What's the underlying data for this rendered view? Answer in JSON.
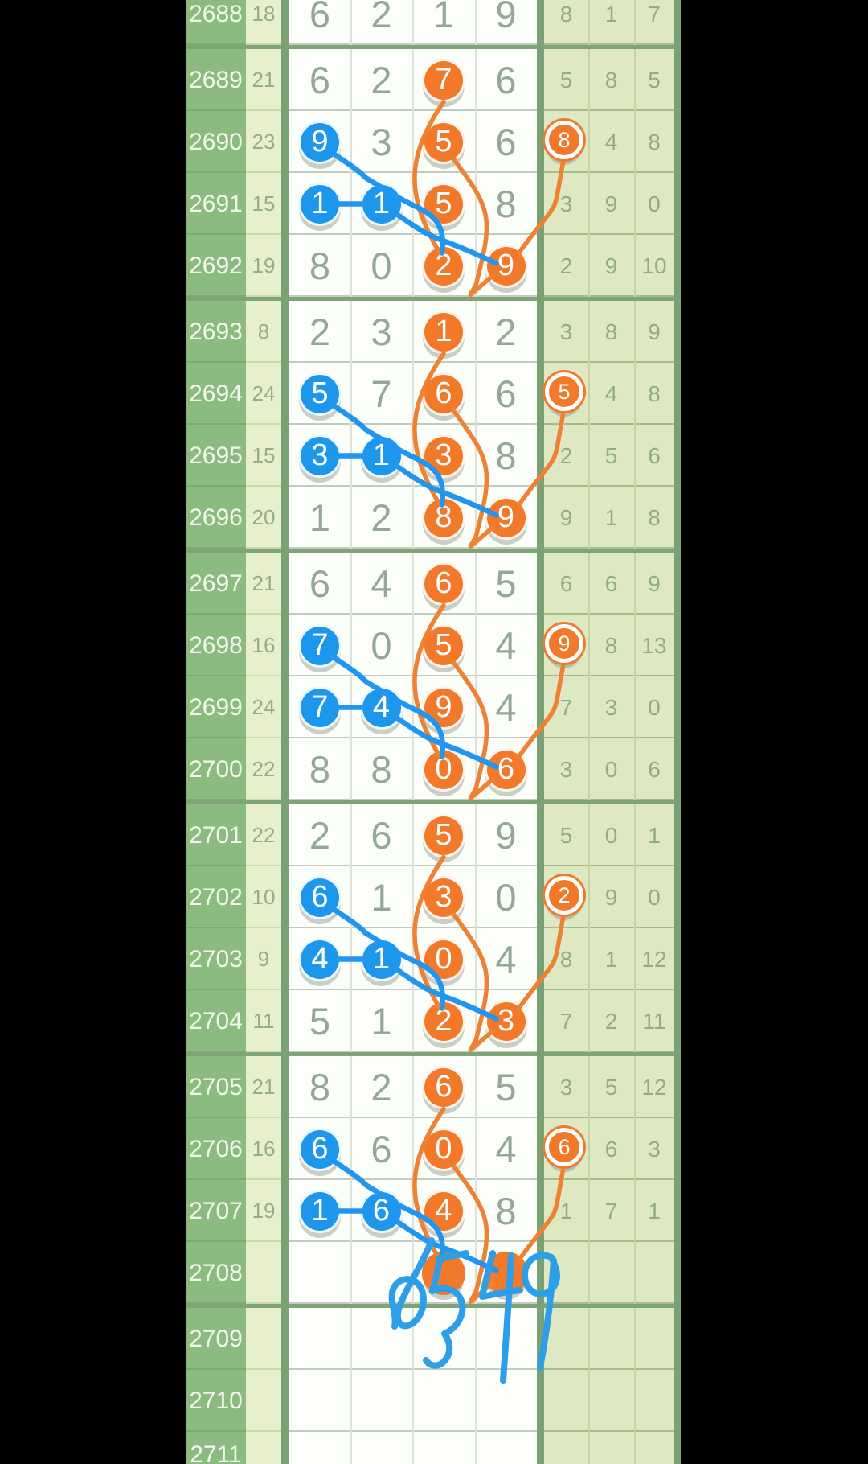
{
  "palette": {
    "orange": "#f2782a",
    "orange_line": "#ef8132",
    "blue": "#1d97ec",
    "blue_line": "#2196f0",
    "period_col_bg": "#8cbb82",
    "sum_col_bg": "#e8efcc",
    "main_bg": "#fcfefa",
    "right_col_bg": "#dee9c3",
    "group_border": "#7fa478",
    "dark_border": "#7aa176"
  },
  "rows": [
    {
      "period": "2688",
      "sum": "18",
      "main": [
        "6",
        "2",
        "1",
        "9"
      ],
      "main_marks": [
        null,
        null,
        null,
        null
      ],
      "right": [
        "8",
        "1",
        "7"
      ],
      "right_marks": [
        null,
        null,
        null
      ]
    },
    {
      "period": "2689",
      "sum": "21",
      "main": [
        "6",
        "2",
        "7",
        "6"
      ],
      "main_marks": [
        null,
        null,
        "orange",
        null
      ],
      "right": [
        "5",
        "8",
        "5"
      ],
      "right_marks": [
        null,
        null,
        null
      ]
    },
    {
      "period": "2690",
      "sum": "23",
      "main": [
        "9",
        "3",
        "5",
        "6"
      ],
      "main_marks": [
        "blue",
        null,
        "orange",
        null
      ],
      "right": [
        "8",
        "4",
        "8"
      ],
      "right_marks": [
        "orange",
        null,
        null
      ]
    },
    {
      "period": "2691",
      "sum": "15",
      "main": [
        "1",
        "1",
        "5",
        "8"
      ],
      "main_marks": [
        "blue",
        "blue",
        "orange",
        null
      ],
      "right": [
        "3",
        "9",
        "0"
      ],
      "right_marks": [
        null,
        null,
        null
      ]
    },
    {
      "period": "2692",
      "sum": "19",
      "main": [
        "8",
        "0",
        "2",
        "9"
      ],
      "main_marks": [
        null,
        null,
        "orange",
        "orange"
      ],
      "right": [
        "2",
        "9",
        "10"
      ],
      "right_marks": [
        null,
        null,
        null
      ]
    },
    {
      "period": "2693",
      "sum": "8",
      "main": [
        "2",
        "3",
        "1",
        "2"
      ],
      "main_marks": [
        null,
        null,
        "orange",
        null
      ],
      "right": [
        "3",
        "8",
        "9"
      ],
      "right_marks": [
        null,
        null,
        null
      ]
    },
    {
      "period": "2694",
      "sum": "24",
      "main": [
        "5",
        "7",
        "6",
        "6"
      ],
      "main_marks": [
        "blue",
        null,
        "orange",
        null
      ],
      "right": [
        "5",
        "4",
        "8"
      ],
      "right_marks": [
        "orange",
        null,
        null
      ]
    },
    {
      "period": "2695",
      "sum": "15",
      "main": [
        "3",
        "1",
        "3",
        "8"
      ],
      "main_marks": [
        "blue",
        "blue",
        "orange",
        null
      ],
      "right": [
        "2",
        "5",
        "6"
      ],
      "right_marks": [
        null,
        null,
        null
      ]
    },
    {
      "period": "2696",
      "sum": "20",
      "main": [
        "1",
        "2",
        "8",
        "9"
      ],
      "main_marks": [
        null,
        null,
        "orange",
        "orange"
      ],
      "right": [
        "9",
        "1",
        "8"
      ],
      "right_marks": [
        null,
        null,
        null
      ]
    },
    {
      "period": "2697",
      "sum": "21",
      "main": [
        "6",
        "4",
        "6",
        "5"
      ],
      "main_marks": [
        null,
        null,
        "orange",
        null
      ],
      "right": [
        "6",
        "6",
        "9"
      ],
      "right_marks": [
        null,
        null,
        null
      ]
    },
    {
      "period": "2698",
      "sum": "16",
      "main": [
        "7",
        "0",
        "5",
        "4"
      ],
      "main_marks": [
        "blue",
        null,
        "orange",
        null
      ],
      "right": [
        "9",
        "8",
        "13"
      ],
      "right_marks": [
        "orange",
        null,
        null
      ]
    },
    {
      "period": "2699",
      "sum": "24",
      "main": [
        "7",
        "4",
        "9",
        "4"
      ],
      "main_marks": [
        "blue",
        "blue",
        "orange",
        null
      ],
      "right": [
        "7",
        "3",
        "0"
      ],
      "right_marks": [
        null,
        null,
        null
      ]
    },
    {
      "period": "2700",
      "sum": "22",
      "main": [
        "8",
        "8",
        "0",
        "6"
      ],
      "main_marks": [
        null,
        null,
        "orange",
        "orange"
      ],
      "right": [
        "3",
        "0",
        "6"
      ],
      "right_marks": [
        null,
        null,
        null
      ]
    },
    {
      "period": "2701",
      "sum": "22",
      "main": [
        "2",
        "6",
        "5",
        "9"
      ],
      "main_marks": [
        null,
        null,
        "orange",
        null
      ],
      "right": [
        "5",
        "0",
        "1"
      ],
      "right_marks": [
        null,
        null,
        null
      ]
    },
    {
      "period": "2702",
      "sum": "10",
      "main": [
        "6",
        "1",
        "3",
        "0"
      ],
      "main_marks": [
        "blue",
        null,
        "orange",
        null
      ],
      "right": [
        "2",
        "9",
        "0"
      ],
      "right_marks": [
        "orange",
        null,
        null
      ]
    },
    {
      "period": "2703",
      "sum": "9",
      "main": [
        "4",
        "1",
        "0",
        "4"
      ],
      "main_marks": [
        "blue",
        "blue",
        "orange",
        null
      ],
      "right": [
        "8",
        "1",
        "12"
      ],
      "right_marks": [
        null,
        null,
        null
      ]
    },
    {
      "period": "2704",
      "sum": "11",
      "main": [
        "5",
        "1",
        "2",
        "3"
      ],
      "main_marks": [
        null,
        null,
        "orange",
        "orange"
      ],
      "right": [
        "7",
        "2",
        "11"
      ],
      "right_marks": [
        null,
        null,
        null
      ]
    },
    {
      "period": "2705",
      "sum": "21",
      "main": [
        "8",
        "2",
        "6",
        "5"
      ],
      "main_marks": [
        null,
        null,
        "orange",
        null
      ],
      "right": [
        "3",
        "5",
        "12"
      ],
      "right_marks": [
        null,
        null,
        null
      ]
    },
    {
      "period": "2706",
      "sum": "16",
      "main": [
        "6",
        "6",
        "0",
        "4"
      ],
      "main_marks": [
        "blue",
        null,
        "orange",
        null
      ],
      "right": [
        "6",
        "6",
        "3"
      ],
      "right_marks": [
        "orange",
        null,
        null
      ]
    },
    {
      "period": "2707",
      "sum": "19",
      "main": [
        "1",
        "6",
        "4",
        "8"
      ],
      "main_marks": [
        "blue",
        "blue",
        "orange",
        null
      ],
      "right": [
        "1",
        "7",
        "1"
      ],
      "right_marks": [
        null,
        null,
        null
      ]
    },
    {
      "period": "2708",
      "sum": "",
      "main": [
        "",
        "",
        "",
        ""
      ],
      "main_marks": [
        null,
        null,
        "orange-empty",
        "orange-empty"
      ],
      "right": [
        "",
        "",
        ""
      ],
      "right_marks": [
        null,
        null,
        null
      ]
    },
    {
      "period": "2709",
      "sum": "",
      "main": [
        "",
        "",
        "",
        ""
      ],
      "main_marks": [
        null,
        null,
        null,
        null
      ],
      "right": [
        "",
        "",
        ""
      ],
      "right_marks": [
        null,
        null,
        null
      ]
    },
    {
      "period": "2710",
      "sum": "",
      "main": [
        "",
        "",
        "",
        ""
      ],
      "main_marks": [
        null,
        null,
        null,
        null
      ],
      "right": [
        "",
        "",
        ""
      ],
      "right_marks": [
        null,
        null,
        null
      ]
    },
    {
      "period": "2711",
      "sum": "",
      "main": [
        "",
        "",
        "",
        ""
      ],
      "main_marks": [
        null,
        null,
        null,
        null
      ],
      "right": [
        "",
        "",
        ""
      ],
      "right_marks": [
        null,
        null,
        null
      ]
    }
  ],
  "group_breaks_after": [
    "2688",
    "2692",
    "2696",
    "2700",
    "2704",
    "2708"
  ],
  "connectors": [
    {
      "color": "orange",
      "kind": "c3long",
      "from": [
        "2689",
        "c3"
      ],
      "to": [
        "2692",
        "c3"
      ]
    },
    {
      "color": "orange",
      "kind": "hook",
      "from": [
        "2690",
        "c3"
      ],
      "to": [
        "2692",
        "c4"
      ]
    },
    {
      "color": "orange",
      "kind": "steep",
      "from": [
        "2690",
        "r1"
      ],
      "to": [
        "2692",
        "c4"
      ]
    },
    {
      "color": "blue",
      "kind": "long",
      "from": [
        "2690",
        "c1"
      ],
      "via": [
        "2691",
        "c2"
      ],
      "to": [
        "2692",
        "c3"
      ]
    },
    {
      "color": "blue",
      "kind": "h",
      "from": [
        "2691",
        "c1"
      ],
      "to": [
        "2691",
        "c2"
      ]
    },
    {
      "color": "blue",
      "kind": "diag",
      "from": [
        "2691",
        "c2"
      ],
      "to": [
        "2692",
        "c4"
      ]
    },
    {
      "color": "orange",
      "kind": "c3long",
      "from": [
        "2693",
        "c3"
      ],
      "to": [
        "2696",
        "c3"
      ]
    },
    {
      "color": "orange",
      "kind": "hook",
      "from": [
        "2694",
        "c3"
      ],
      "to": [
        "2696",
        "c4"
      ]
    },
    {
      "color": "orange",
      "kind": "steep",
      "from": [
        "2694",
        "r1"
      ],
      "to": [
        "2696",
        "c4"
      ]
    },
    {
      "color": "blue",
      "kind": "long",
      "from": [
        "2694",
        "c1"
      ],
      "via": [
        "2695",
        "c2"
      ],
      "to": [
        "2696",
        "c3"
      ]
    },
    {
      "color": "blue",
      "kind": "h",
      "from": [
        "2695",
        "c1"
      ],
      "to": [
        "2695",
        "c2"
      ]
    },
    {
      "color": "blue",
      "kind": "diag",
      "from": [
        "2695",
        "c2"
      ],
      "to": [
        "2696",
        "c4"
      ]
    },
    {
      "color": "orange",
      "kind": "c3long",
      "from": [
        "2697",
        "c3"
      ],
      "to": [
        "2700",
        "c3"
      ]
    },
    {
      "color": "orange",
      "kind": "hook",
      "from": [
        "2698",
        "c3"
      ],
      "to": [
        "2700",
        "c4"
      ]
    },
    {
      "color": "orange",
      "kind": "steep",
      "from": [
        "2698",
        "r1"
      ],
      "to": [
        "2700",
        "c4"
      ]
    },
    {
      "color": "blue",
      "kind": "long",
      "from": [
        "2698",
        "c1"
      ],
      "via": [
        "2699",
        "c2"
      ],
      "to": [
        "2700",
        "c3"
      ]
    },
    {
      "color": "blue",
      "kind": "h",
      "from": [
        "2699",
        "c1"
      ],
      "to": [
        "2699",
        "c2"
      ]
    },
    {
      "color": "blue",
      "kind": "diag",
      "from": [
        "2699",
        "c2"
      ],
      "to": [
        "2700",
        "c4"
      ]
    },
    {
      "color": "orange",
      "kind": "c3long",
      "from": [
        "2701",
        "c3"
      ],
      "to": [
        "2704",
        "c3"
      ]
    },
    {
      "color": "orange",
      "kind": "hook",
      "from": [
        "2702",
        "c3"
      ],
      "to": [
        "2704",
        "c4"
      ]
    },
    {
      "color": "orange",
      "kind": "steep",
      "from": [
        "2702",
        "r1"
      ],
      "to": [
        "2704",
        "c4"
      ]
    },
    {
      "color": "blue",
      "kind": "long",
      "from": [
        "2702",
        "c1"
      ],
      "via": [
        "2703",
        "c2"
      ],
      "to": [
        "2704",
        "c3"
      ]
    },
    {
      "color": "blue",
      "kind": "h",
      "from": [
        "2703",
        "c1"
      ],
      "to": [
        "2703",
        "c2"
      ]
    },
    {
      "color": "blue",
      "kind": "diag",
      "from": [
        "2703",
        "c2"
      ],
      "to": [
        "2704",
        "c4"
      ]
    },
    {
      "color": "orange",
      "kind": "c3long",
      "from": [
        "2705",
        "c3"
      ],
      "to": [
        "2708",
        "c3"
      ]
    },
    {
      "color": "orange",
      "kind": "hook",
      "from": [
        "2706",
        "c3"
      ],
      "to": [
        "2708",
        "c4"
      ]
    },
    {
      "color": "orange",
      "kind": "steep",
      "from": [
        "2706",
        "r1"
      ],
      "to": [
        "2708",
        "c4"
      ]
    },
    {
      "color": "blue",
      "kind": "long",
      "from": [
        "2706",
        "c1"
      ],
      "via": [
        "2707",
        "c2"
      ],
      "to": [
        "2708",
        "c3"
      ]
    },
    {
      "color": "blue",
      "kind": "h",
      "from": [
        "2707",
        "c1"
      ],
      "to": [
        "2707",
        "c2"
      ]
    },
    {
      "color": "blue",
      "kind": "diag",
      "from": [
        "2707",
        "c2"
      ],
      "to": [
        "2708",
        "c4"
      ]
    }
  ],
  "handwriting": {
    "text": "0549",
    "color": "#2d9ee8",
    "stroke_width": 8,
    "strokes": [
      "M 537 1542 C 526 1571 507 1598 497 1624 C 491 1641 498 1654 512 1646 C 528 1636 532 1609 520 1596 C 510 1585 491 1590 488 1607 C 486 1621 494 1636 491 1649",
      "M 580 1558 C 567 1561 555 1562 547 1564 C 545 1579 542 1592 538 1605 C 553 1598 569 1603 574 1617 C 579 1634 569 1651 553 1658 C 561 1669 562 1683 552 1693 C 545 1700 535 1699 530 1691",
      "M 613 1558 C 608 1578 603 1597 600 1612 C 615 1609 631 1606 647 1604 M 636 1561 C 634 1600 630 1660 626 1716",
      "M 686 1563 C 670 1556 654 1566 653 1583 C 652 1600 664 1612 678 1608 C 691 1604 696 1589 691 1575 C 689 1569 687 1565 686 1563 M 689 1567 C 686 1610 680 1658 672 1700"
    ]
  }
}
